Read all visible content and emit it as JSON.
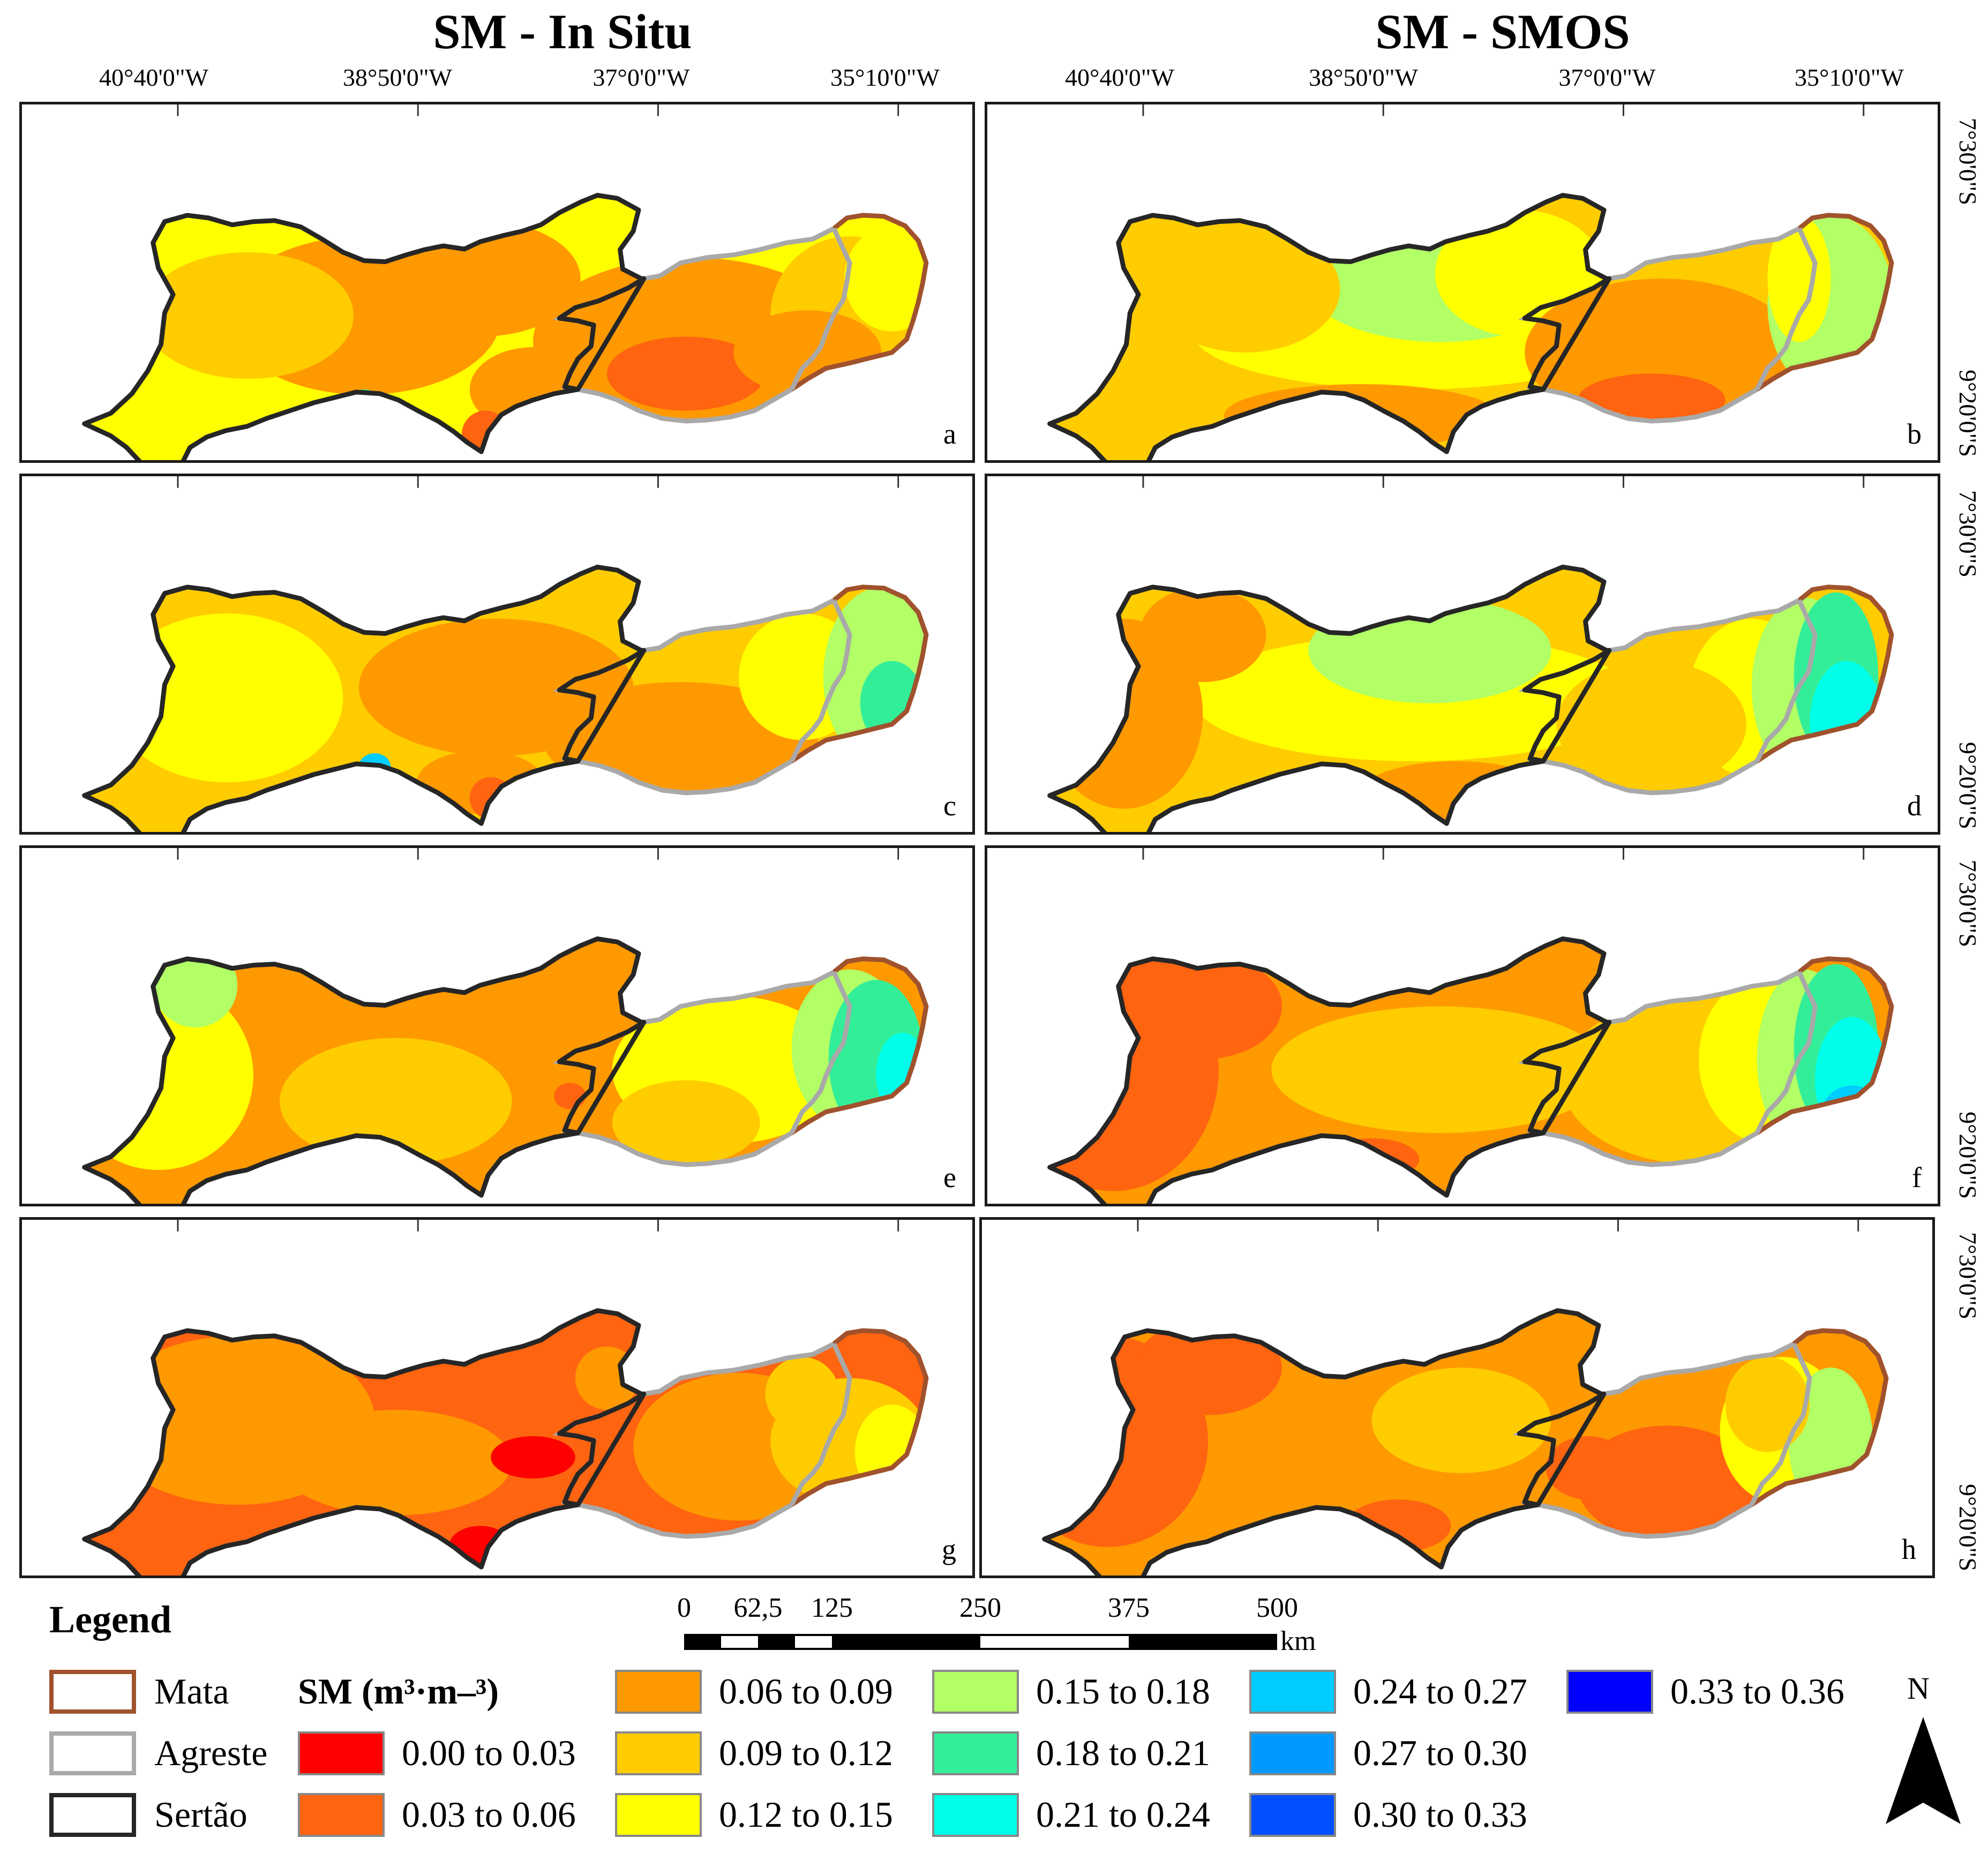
{
  "titles": {
    "left": "SM - In Situ",
    "right": "SM - SMOS"
  },
  "longitude_labels": [
    "40°40'0\"W",
    "38°50'0\"W",
    "37°0'0\"W",
    "35°10'0\"W"
  ],
  "latitude_labels": [
    "7°30'0\"S",
    "9°20'0\"S"
  ],
  "panels": [
    {
      "letter": "a",
      "scheme": "insitu_wet"
    },
    {
      "letter": "b",
      "scheme": "smos_wet"
    },
    {
      "letter": "c",
      "scheme": "insitu_mid"
    },
    {
      "letter": "d",
      "scheme": "smos_mid"
    },
    {
      "letter": "e",
      "scheme": "insitu_moist"
    },
    {
      "letter": "f",
      "scheme": "smos_moist"
    },
    {
      "letter": "g",
      "scheme": "insitu_dry"
    },
    {
      "letter": "h",
      "scheme": "smos_dry"
    }
  ],
  "scale_bar": {
    "ticks": [
      "0",
      "62,5",
      "125",
      "250",
      "375",
      "500"
    ],
    "unit": "km"
  },
  "legend": {
    "title": "Legend",
    "regions": [
      {
        "label": "Mata",
        "color": "#a0522d"
      },
      {
        "label": "Agreste",
        "color": "#a9a9a9"
      },
      {
        "label": "Sertão",
        "color": "#262626"
      }
    ],
    "sm_title": "SM (m³·m–³)",
    "classes": [
      {
        "label": "0.00 to 0.03",
        "color": "#ff0000"
      },
      {
        "label": "0.03 to 0.06",
        "color": "#ff6410"
      },
      {
        "label": "0.06 to 0.09",
        "color": "#ff9900"
      },
      {
        "label": "0.09 to 0.12",
        "color": "#ffcc00"
      },
      {
        "label": "0.12 to 0.15",
        "color": "#ffff00"
      },
      {
        "label": "0.15 to 0.18",
        "color": "#b2ff66"
      },
      {
        "label": "0.18 to 0.21",
        "color": "#33ee99"
      },
      {
        "label": "0.21 to 0.24",
        "color": "#00ffe8"
      },
      {
        "label": "0.24 to 0.27",
        "color": "#00ccff"
      },
      {
        "label": "0.27 to 0.30",
        "color": "#0099ff"
      },
      {
        "label": "0.30 to 0.33",
        "color": "#0050ff"
      },
      {
        "label": "0.33 to 0.36",
        "color": "#0000ff"
      }
    ]
  },
  "north_arrow": {
    "label": "N"
  }
}
